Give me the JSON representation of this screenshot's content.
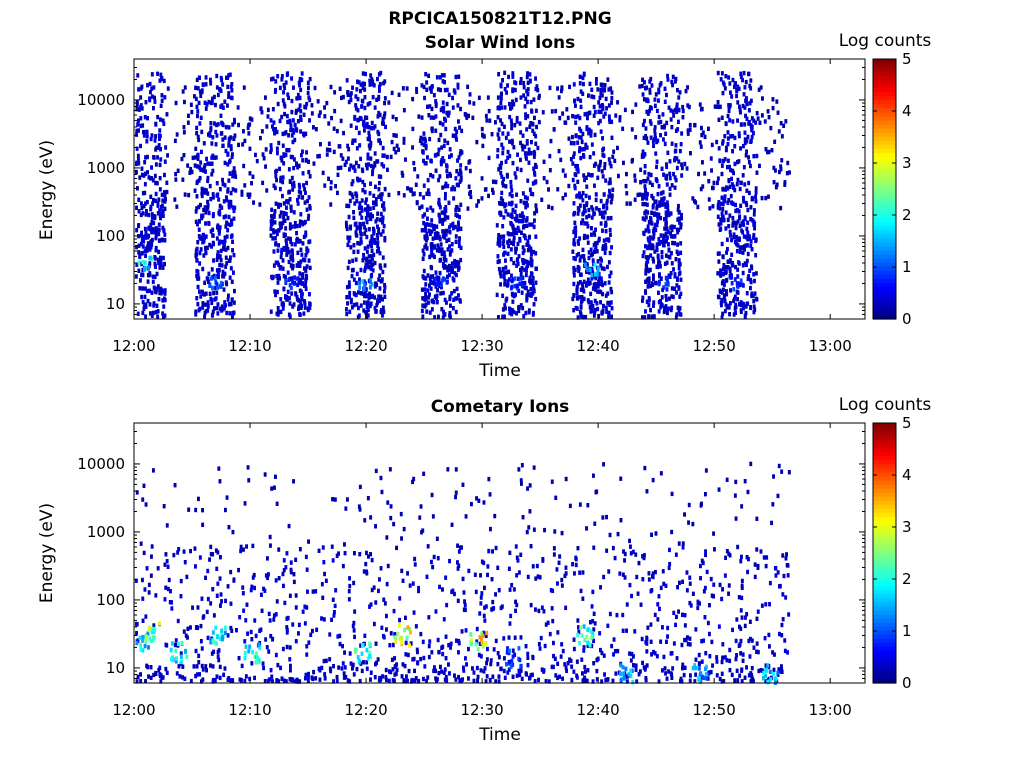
{
  "figure": {
    "title": "RPCICA150821T12.PNG"
  },
  "chart_data": [
    {
      "type": "heatmap",
      "title": "Solar Wind Ions",
      "xlabel": "Time",
      "ylabel": "Energy (eV)",
      "x_ticks": [
        "12:00",
        "12:10",
        "12:20",
        "12:30",
        "12:40",
        "12:50",
        "13:00"
      ],
      "x_range_minutes": [
        0,
        63
      ],
      "y_scale": "log",
      "y_ticks": [
        "10",
        "100",
        "1000",
        "10000"
      ],
      "y_range": [
        6,
        40000
      ],
      "colorbar": {
        "label": "Log counts",
        "ticks": [
          "0",
          "1",
          "2",
          "3",
          "4",
          "5"
        ],
        "range": [
          0,
          5
        ],
        "colormap": "jet"
      },
      "data_span_minutes": [
        0.2,
        56.5
      ],
      "bursts": [
        {
          "center_min": 1.0,
          "log_counts_peak": 2.3,
          "peak_energy_ev": 40
        },
        {
          "center_min": 7.0,
          "log_counts_peak": 1.2,
          "peak_energy_ev": 20
        },
        {
          "center_min": 13.5,
          "log_counts_peak": 1.0,
          "peak_energy_ev": 20
        },
        {
          "center_min": 20.0,
          "log_counts_peak": 1.8,
          "peak_energy_ev": 20
        },
        {
          "center_min": 26.5,
          "log_counts_peak": 1.0,
          "peak_energy_ev": 20
        },
        {
          "center_min": 33.0,
          "log_counts_peak": 1.0,
          "peak_energy_ev": 20
        },
        {
          "center_min": 39.5,
          "log_counts_peak": 1.9,
          "peak_energy_ev": 30
        },
        {
          "center_min": 45.5,
          "log_counts_peak": 1.0,
          "peak_energy_ev": 20
        },
        {
          "center_min": 52.0,
          "log_counts_peak": 1.0,
          "peak_energy_ev": 20
        }
      ]
    },
    {
      "type": "heatmap",
      "title": "Cometary Ions",
      "xlabel": "Time",
      "ylabel": "Energy (eV)",
      "x_ticks": [
        "12:00",
        "12:10",
        "12:20",
        "12:30",
        "12:40",
        "12:50",
        "13:00"
      ],
      "x_range_minutes": [
        0,
        63
      ],
      "y_scale": "log",
      "y_ticks": [
        "10",
        "100",
        "1000",
        "10000"
      ],
      "y_range": [
        6,
        40000
      ],
      "colorbar": {
        "label": "Log counts",
        "ticks": [
          "0",
          "1",
          "2",
          "3",
          "4",
          "5"
        ],
        "range": [
          0,
          5
        ],
        "colormap": "jet"
      },
      "data_span_minutes": [
        0.2,
        56.5
      ],
      "hot_spots": [
        {
          "time_min": 0.6,
          "energy_ev": 25,
          "log_counts": 2.2
        },
        {
          "time_min": 1.7,
          "energy_ev": 33,
          "log_counts": 3.0
        },
        {
          "time_min": 3.9,
          "energy_ev": 17,
          "log_counts": 2.3
        },
        {
          "time_min": 7.2,
          "energy_ev": 30,
          "log_counts": 2.3
        },
        {
          "time_min": 10.2,
          "energy_ev": 17,
          "log_counts": 2.4
        },
        {
          "time_min": 19.7,
          "energy_ev": 17,
          "log_counts": 2.4
        },
        {
          "time_min": 23.2,
          "energy_ev": 30,
          "log_counts": 3.6
        },
        {
          "time_min": 29.7,
          "energy_ev": 25,
          "log_counts": 3.9
        },
        {
          "time_min": 32.7,
          "energy_ev": 14,
          "log_counts": 1.2
        },
        {
          "time_min": 38.9,
          "energy_ev": 30,
          "log_counts": 2.7
        },
        {
          "time_min": 42.3,
          "energy_ev": 8,
          "log_counts": 2.0
        },
        {
          "time_min": 48.7,
          "energy_ev": 8,
          "log_counts": 1.8
        },
        {
          "time_min": 54.8,
          "energy_ev": 8,
          "log_counts": 2.0
        }
      ]
    }
  ]
}
